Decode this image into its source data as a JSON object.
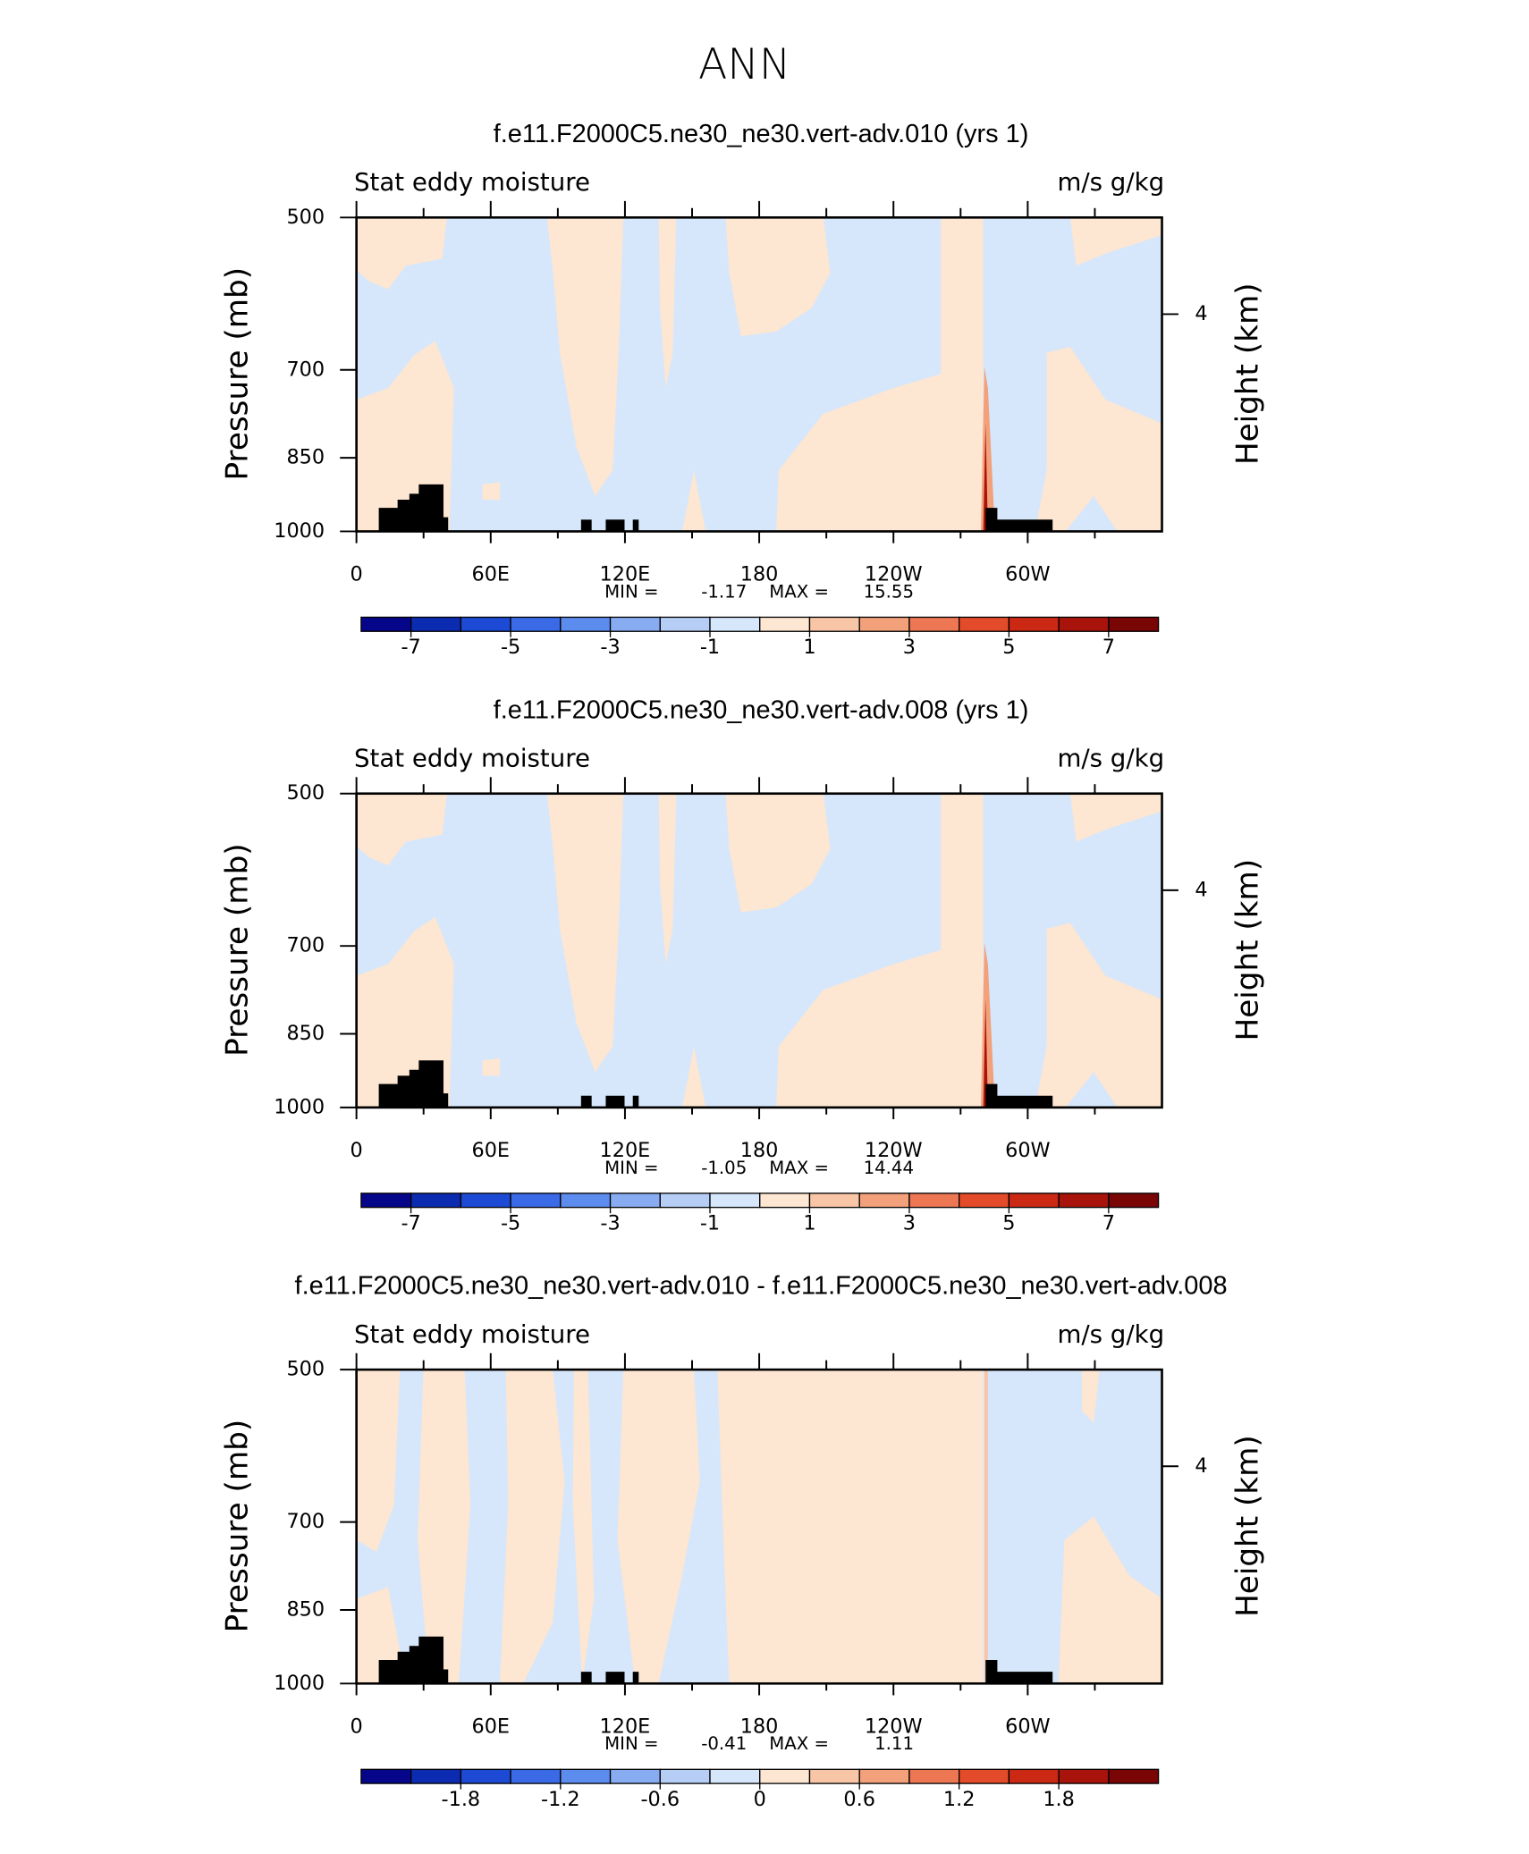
{
  "title": "ANN",
  "chart_data": [
    {
      "type": "contour",
      "title": "f.e11.F2000C5.ne30_ne30.vert-adv.010 (yrs 1)",
      "left_label": "Stat eddy moisture",
      "right_label": "m/s g/kg",
      "ylabel": "Pressure (mb)",
      "y2label": "Height (km)",
      "ylim": [
        1000,
        500
      ],
      "yticks": [
        500,
        700,
        850,
        1000
      ],
      "ylog": true,
      "y2lim": [
        0,
        5.78
      ],
      "y2ticks": [
        4
      ],
      "xlim": [
        0,
        360
      ],
      "xticks": [
        0,
        {
          "value": 60,
          "label": "60E"
        },
        {
          "value": 120,
          "label": "120E"
        },
        180,
        {
          "value": 240,
          "label": "120W"
        },
        {
          "value": 300,
          "label": "60W"
        }
      ],
      "xminor": [
        30,
        90,
        150,
        210,
        270,
        330
      ],
      "min_label": "MIN =",
      "min": -1.17,
      "max_label": "MAX =",
      "max": 15.55,
      "levels": [
        -7,
        -6,
        -5,
        -4,
        -3,
        -2,
        -1,
        0,
        1,
        2,
        3,
        4,
        5,
        6,
        7
      ],
      "colorbar_ticks": [
        -7,
        -5,
        -3,
        -1,
        1,
        3,
        5,
        7
      ],
      "colors": [
        "#06068a",
        "#0b2bb0",
        "#1c4ad4",
        "#3a6ae6",
        "#5c8cee",
        "#88acf2",
        "#b6cdf6",
        "#d6e7fb",
        "#fde6d2",
        "#f8c6a6",
        "#f3a17b",
        "#ed7753",
        "#e44b2b",
        "#cb2914",
        "#a8140b",
        "#790505"
      ],
      "topo_color": "#000000"
    },
    {
      "type": "contour",
      "title": "f.e11.F2000C5.ne30_ne30.vert-adv.008 (yrs 1)",
      "left_label": "Stat eddy moisture",
      "right_label": "m/s g/kg",
      "ylabel": "Pressure (mb)",
      "y2label": "Height (km)",
      "ylim": [
        1000,
        500
      ],
      "yticks": [
        500,
        700,
        850,
        1000
      ],
      "ylog": true,
      "y2lim": [
        0,
        5.78
      ],
      "y2ticks": [
        4
      ],
      "xlim": [
        0,
        360
      ],
      "xticks": [
        0,
        {
          "value": 60,
          "label": "60E"
        },
        {
          "value": 120,
          "label": "120E"
        },
        180,
        {
          "value": 240,
          "label": "120W"
        },
        {
          "value": 300,
          "label": "60W"
        }
      ],
      "xminor": [
        30,
        90,
        150,
        210,
        270,
        330
      ],
      "min_label": "MIN =",
      "min": -1.05,
      "max_label": "MAX =",
      "max": 14.44,
      "levels": [
        -7,
        -6,
        -5,
        -4,
        -3,
        -2,
        -1,
        0,
        1,
        2,
        3,
        4,
        5,
        6,
        7
      ],
      "colorbar_ticks": [
        -7,
        -5,
        -3,
        -1,
        1,
        3,
        5,
        7
      ],
      "colors": [
        "#06068a",
        "#0b2bb0",
        "#1c4ad4",
        "#3a6ae6",
        "#5c8cee",
        "#88acf2",
        "#b6cdf6",
        "#d6e7fb",
        "#fde6d2",
        "#f8c6a6",
        "#f3a17b",
        "#ed7753",
        "#e44b2b",
        "#cb2914",
        "#a8140b",
        "#790505"
      ],
      "topo_color": "#000000"
    },
    {
      "type": "contour",
      "title": "f.e11.F2000C5.ne30_ne30.vert-adv.010 - f.e11.F2000C5.ne30_ne30.vert-adv.008",
      "left_label": "Stat eddy moisture",
      "right_label": "m/s g/kg",
      "ylabel": "Pressure (mb)",
      "y2label": "Height (km)",
      "ylim": [
        1000,
        500
      ],
      "yticks": [
        500,
        700,
        850,
        1000
      ],
      "ylog": true,
      "y2lim": [
        0,
        5.78
      ],
      "y2ticks": [
        4
      ],
      "xlim": [
        0,
        360
      ],
      "xticks": [
        0,
        {
          "value": 60,
          "label": "60E"
        },
        {
          "value": 120,
          "label": "120E"
        },
        180,
        {
          "value": 240,
          "label": "120W"
        },
        {
          "value": 300,
          "label": "60W"
        }
      ],
      "xminor": [
        30,
        90,
        150,
        210,
        270,
        330
      ],
      "min_label": "MIN =",
      "min": -0.41,
      "max_label": "MAX =",
      "max": 1.11,
      "levels": [
        -2.1,
        -1.8,
        -1.5,
        -1.2,
        -0.9,
        -0.6,
        -0.3,
        0,
        0.3,
        0.6,
        0.9,
        1.2,
        1.5,
        1.8,
        2.1
      ],
      "colorbar_ticks": [
        -1.8,
        -1.2,
        -0.6,
        0,
        0.6,
        1.2,
        1.8
      ],
      "colors": [
        "#06068a",
        "#0b2bb0",
        "#1c4ad4",
        "#3a6ae6",
        "#5c8cee",
        "#88acf2",
        "#b6cdf6",
        "#d6e7fb",
        "#fde6d2",
        "#f8c6a6",
        "#f3a17b",
        "#ed7753",
        "#e44b2b",
        "#cb2914",
        "#a8140b",
        "#790505"
      ],
      "topo_color": "#000000"
    }
  ]
}
